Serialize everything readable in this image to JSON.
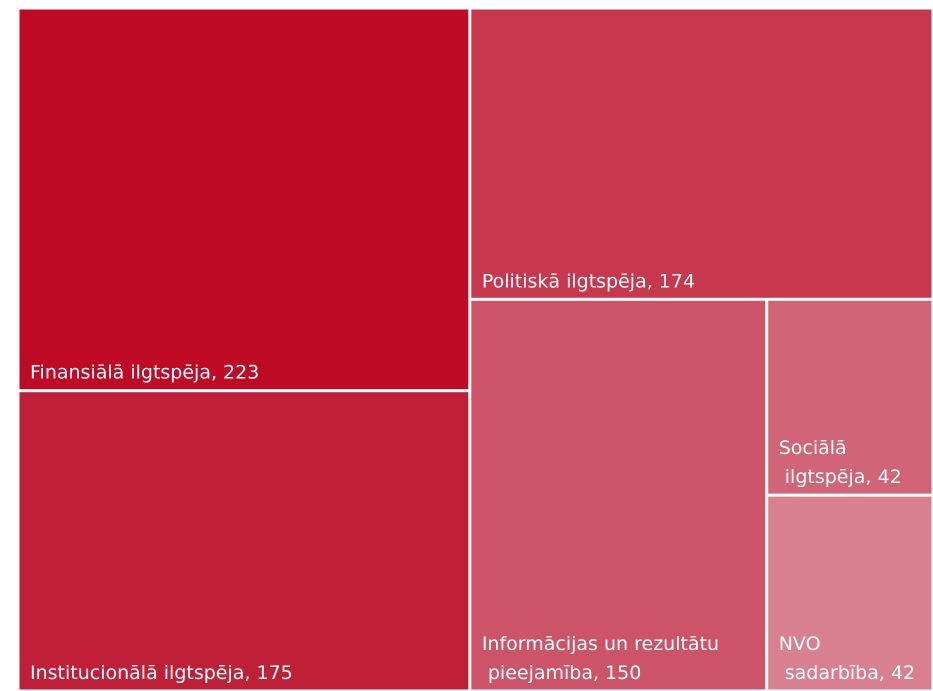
{
  "chart_data": {
    "type": "treemap",
    "labels": [
      "Finansiālā ilgtspēja, 223",
      "Institucionālā ilgtspēja, 175",
      "Politiskā ilgtspēja, 174",
      "Informācijas un rezultātu pieejamība, 150",
      "Sociālā ilgtspēja, 42",
      "NVO sadarbība, 42"
    ],
    "values": [
      223,
      175,
      174,
      150,
      42,
      42
    ],
    "colors": [
      "#bf0a26",
      "#c02037",
      "#c8374d",
      "#cd5468",
      "#d16477",
      "#d8808f"
    ]
  }
}
